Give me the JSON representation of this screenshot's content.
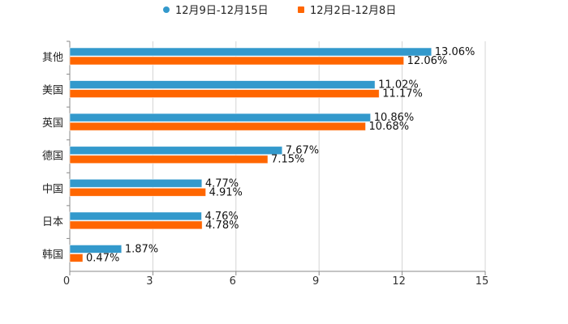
{
  "chart_data": {
    "type": "bar",
    "orientation": "horizontal",
    "title": "",
    "categories": [
      "其他",
      "美国",
      "英国",
      "德国",
      "中国",
      "日本",
      "韩国"
    ],
    "series": [
      {
        "name": "12月9日-12月15日",
        "color": "#3399cc",
        "values": [
          13.06,
          11.02,
          10.86,
          7.67,
          4.77,
          4.76,
          1.87
        ],
        "labels": [
          "13.06%",
          "11.02%",
          "10.86%",
          "7.67%",
          "4.77%",
          "4.76%",
          "1.87%"
        ]
      },
      {
        "name": "12月2日-12月8日",
        "color": "#ff6600",
        "values": [
          12.06,
          11.17,
          10.68,
          7.15,
          4.91,
          4.78,
          0.47
        ],
        "labels": [
          "12.06%",
          "11.17%",
          "10.68%",
          "7.15%",
          "4.91%",
          "4.78%",
          "0.47%"
        ]
      }
    ],
    "xlabel": "",
    "ylabel": "",
    "xlim": [
      0,
      15
    ],
    "xticks": [
      0,
      3,
      6,
      9,
      12,
      15
    ],
    "xtick_labels": [
      "0",
      "3",
      "6",
      "9",
      "12",
      "15"
    ],
    "grid": true,
    "legend_position": "top-center"
  }
}
